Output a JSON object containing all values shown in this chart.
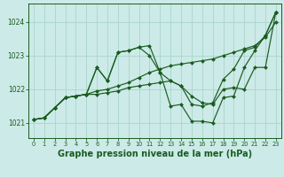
{
  "background_color": "#cceae7",
  "grid_color": "#aad5cc",
  "line_color": "#1a5c20",
  "xlabel": "Graphe pression niveau de la mer (hPa)",
  "xlabel_fontsize": 7.0,
  "ytick_fontsize": 5.5,
  "xtick_fontsize": 4.8,
  "yticks": [
    1021,
    1022,
    1023,
    1024
  ],
  "ylim": [
    1020.55,
    1024.55
  ],
  "xlim": [
    -0.5,
    23.5
  ],
  "series": [
    {
      "x": [
        0,
        1,
        2,
        3,
        4,
        5,
        6,
        7,
        8,
        9,
        10,
        11,
        12,
        13,
        14,
        15,
        16,
        17,
        18,
        19,
        20,
        21,
        22,
        23
      ],
      "y": [
        1021.1,
        1021.15,
        1021.45,
        1021.75,
        1021.8,
        1021.85,
        1021.95,
        1022.0,
        1022.1,
        1022.2,
        1022.35,
        1022.5,
        1022.6,
        1022.7,
        1022.75,
        1022.8,
        1022.85,
        1022.9,
        1023.0,
        1023.1,
        1023.2,
        1023.3,
        1023.55,
        1024.0
      ]
    },
    {
      "x": [
        0,
        1,
        2,
        3,
        4,
        5,
        6,
        7,
        8,
        9,
        10,
        11,
        12,
        13,
        14,
        15,
        16,
        17,
        18,
        19,
        20,
        21,
        22,
        23
      ],
      "y": [
        1021.1,
        1021.15,
        1021.45,
        1021.75,
        1021.8,
        1021.85,
        1022.65,
        1022.25,
        1023.1,
        1023.15,
        1023.25,
        1023.3,
        1022.5,
        1022.25,
        1022.1,
        1021.55,
        1021.5,
        1021.6,
        1022.3,
        1022.6,
        1023.15,
        1023.25,
        1023.6,
        1024.3
      ]
    },
    {
      "x": [
        0,
        1,
        2,
        3,
        4,
        5,
        6,
        7,
        8,
        9,
        10,
        11,
        12,
        13,
        14,
        15,
        16,
        17,
        18,
        19,
        20,
        21,
        22,
        23
      ],
      "y": [
        1021.1,
        1021.15,
        1021.45,
        1021.75,
        1021.8,
        1021.85,
        1022.65,
        1022.25,
        1023.1,
        1023.15,
        1023.25,
        1023.0,
        1022.5,
        1021.5,
        1021.55,
        1021.05,
        1021.05,
        1021.0,
        1021.75,
        1021.8,
        1022.65,
        1023.15,
        1023.6,
        1024.3
      ]
    },
    {
      "x": [
        0,
        1,
        2,
        3,
        4,
        5,
        6,
        7,
        8,
        9,
        10,
        11,
        12,
        13,
        14,
        15,
        16,
        17,
        18,
        19,
        20,
        21,
        22,
        23
      ],
      "y": [
        1021.1,
        1021.15,
        1021.45,
        1021.75,
        1021.8,
        1021.85,
        1021.85,
        1021.9,
        1021.95,
        1022.05,
        1022.1,
        1022.15,
        1022.2,
        1022.25,
        1022.1,
        1021.8,
        1021.6,
        1021.55,
        1022.0,
        1022.05,
        1022.0,
        1022.65,
        1022.65,
        1024.3
      ]
    }
  ]
}
